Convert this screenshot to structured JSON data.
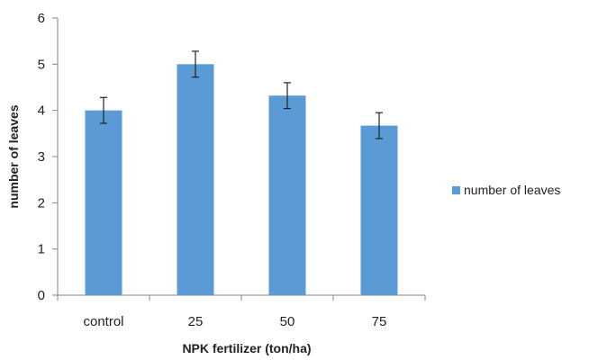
{
  "chart_data": {
    "type": "bar",
    "categories": [
      "control",
      "25",
      "50",
      "75"
    ],
    "series": [
      {
        "name": "number of leaves",
        "values": [
          4.0,
          5.0,
          4.32,
          3.67
        ],
        "errors": [
          0.28,
          0.28,
          0.28,
          0.28
        ]
      }
    ],
    "xlabel": "NPK fertilizer (ton/ha)",
    "ylabel": "number of leaves",
    "ylim": [
      0,
      6
    ],
    "yticks": [
      0,
      1,
      2,
      3,
      4,
      5,
      6
    ],
    "grid": false,
    "legend_position": "right",
    "colors": {
      "bar": "#5b9bd5",
      "axis": "#868686",
      "error": "#222222"
    }
  }
}
